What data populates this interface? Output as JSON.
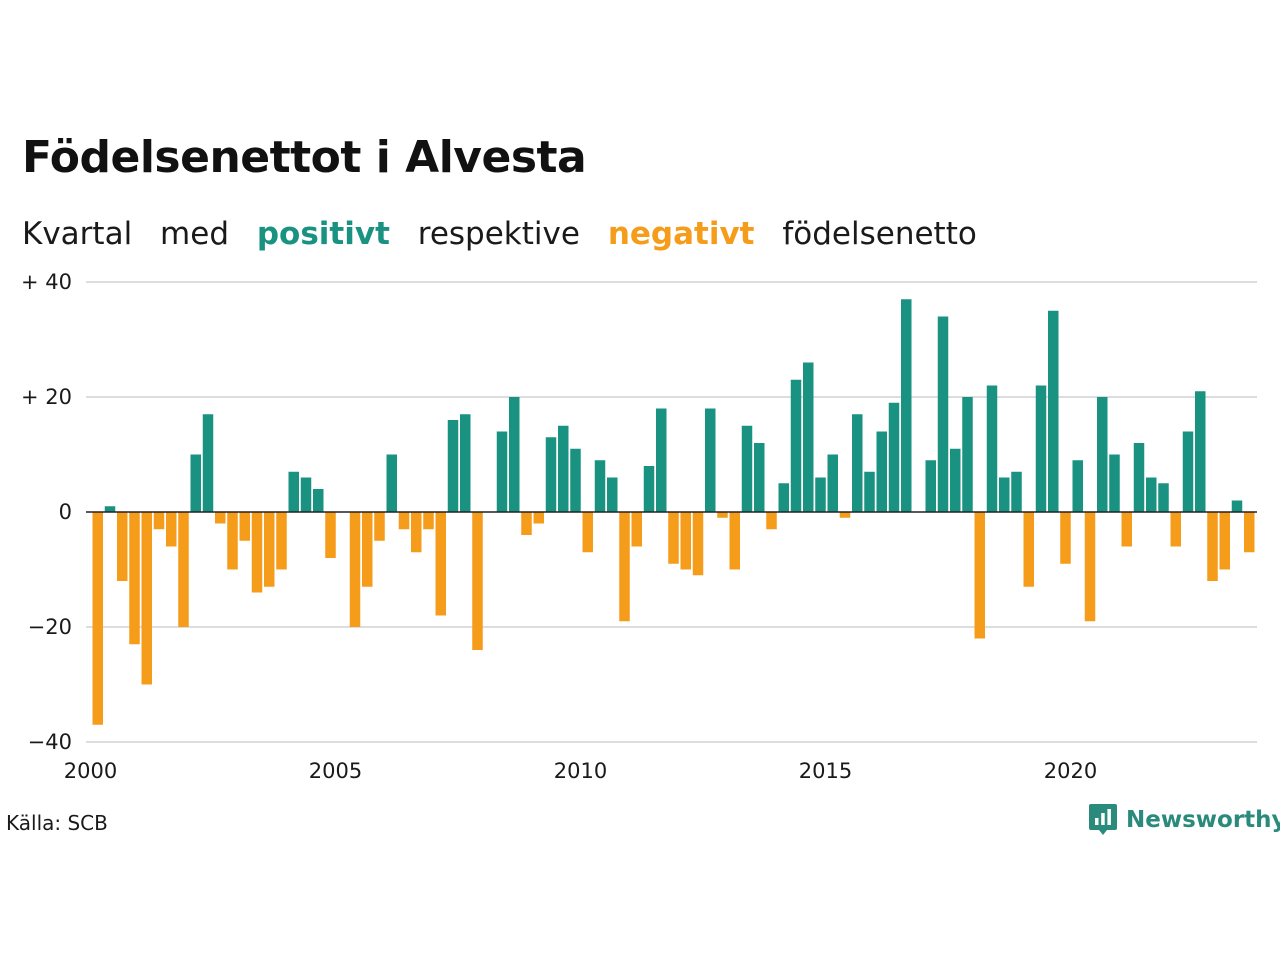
{
  "title": "Födelsenettot i Alvesta",
  "subtitle": {
    "w1": "Kvartal",
    "w2": "med",
    "positive_word": "positivt",
    "w4": "respektive",
    "negative_word": "negativt",
    "w6": "födelsenetto"
  },
  "source": "Källa: SCB",
  "brand": {
    "name": "Newsworthy",
    "icon": "newsworthy-logo-icon"
  },
  "colors": {
    "positive": "#1a9282",
    "negative": "#f59c1a",
    "grid": "#dddddd",
    "zero": "#222222"
  },
  "chart_data": {
    "type": "bar",
    "title": "Födelsenettot i Alvesta",
    "ylim": [
      -40,
      40
    ],
    "y_ticks": [
      {
        "value": 40,
        "label": "+ 40"
      },
      {
        "value": 20,
        "label": "+ 20"
      },
      {
        "value": 0,
        "label": "0"
      },
      {
        "value": -20,
        "label": "−20"
      },
      {
        "value": -40,
        "label": "−40"
      }
    ],
    "x_ticks": [
      "2000",
      "2005",
      "2010",
      "2015",
      "2020"
    ],
    "grid": true,
    "categories": [
      "2000Q1",
      "2000Q2",
      "2000Q3",
      "2000Q4",
      "2001Q1",
      "2001Q2",
      "2001Q3",
      "2001Q4",
      "2002Q1",
      "2002Q2",
      "2002Q3",
      "2002Q4",
      "2003Q1",
      "2003Q2",
      "2003Q3",
      "2003Q4",
      "2004Q1",
      "2004Q2",
      "2004Q3",
      "2004Q4",
      "2005Q1",
      "2005Q2",
      "2005Q3",
      "2005Q4",
      "2006Q1",
      "2006Q2",
      "2006Q3",
      "2006Q4",
      "2007Q1",
      "2007Q2",
      "2007Q3",
      "2007Q4",
      "2008Q1",
      "2008Q2",
      "2008Q3",
      "2008Q4",
      "2009Q1",
      "2009Q2",
      "2009Q3",
      "2009Q4",
      "2010Q1",
      "2010Q2",
      "2010Q3",
      "2010Q4",
      "2011Q1",
      "2011Q2",
      "2011Q3",
      "2011Q4",
      "2012Q1",
      "2012Q2",
      "2012Q3",
      "2012Q4",
      "2013Q1",
      "2013Q2",
      "2013Q3",
      "2013Q4",
      "2014Q1",
      "2014Q2",
      "2014Q3",
      "2014Q4",
      "2015Q1",
      "2015Q2",
      "2015Q3",
      "2015Q4",
      "2016Q1",
      "2016Q2",
      "2016Q3",
      "2016Q4",
      "2017Q1",
      "2017Q2",
      "2017Q3",
      "2017Q4",
      "2018Q1",
      "2018Q2",
      "2018Q3",
      "2018Q4",
      "2019Q1",
      "2019Q2",
      "2019Q3",
      "2019Q4",
      "2020Q1",
      "2020Q2",
      "2020Q3",
      "2020Q4",
      "2021Q1",
      "2021Q2",
      "2021Q3",
      "2021Q4",
      "2022Q1",
      "2022Q2",
      "2022Q3",
      "2022Q4",
      "2023Q1",
      "2023Q2",
      "2023Q3",
      "2023Q4"
    ],
    "values": [
      -37,
      1,
      -12,
      -23,
      -30,
      -3,
      -6,
      -20,
      10,
      17,
      -2,
      -10,
      -5,
      -14,
      -13,
      -10,
      7,
      6,
      4,
      -8,
      0,
      -20,
      -13,
      -5,
      10,
      -3,
      -7,
      -3,
      -18,
      16,
      17,
      -24,
      0,
      14,
      20,
      -4,
      -2,
      13,
      15,
      11,
      -7,
      9,
      6,
      -19,
      -6,
      8,
      18,
      -9,
      -10,
      -11,
      18,
      -1,
      -10,
      15,
      12,
      -3,
      5,
      23,
      26,
      6,
      10,
      -1,
      17,
      7,
      14,
      19,
      37,
      0,
      9,
      34,
      11,
      20,
      -22,
      22,
      6,
      7,
      -13,
      22,
      35,
      -9,
      9,
      -19,
      20,
      10,
      -6,
      12,
      6,
      5,
      -6,
      14,
      21,
      -12,
      -10,
      2,
      -7,
      0
    ]
  }
}
